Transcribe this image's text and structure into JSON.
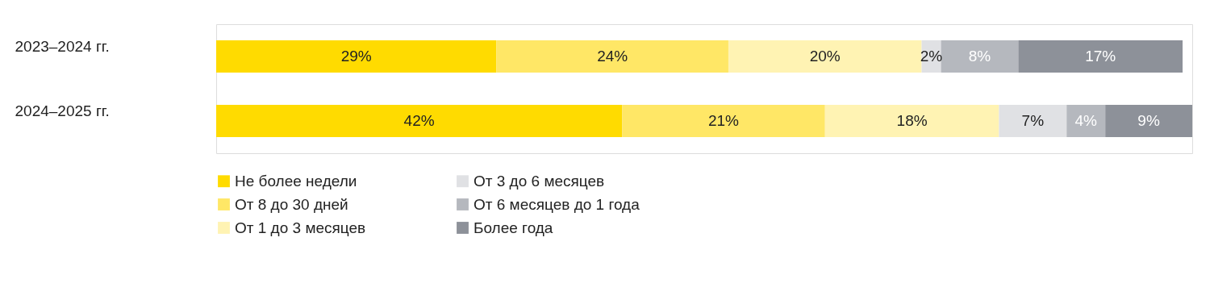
{
  "chart_data": {
    "type": "bar",
    "orientation": "horizontal",
    "stacked": true,
    "legend": "bottom",
    "categories": [
      "2023–2024 гг.",
      "2024–2025 гг."
    ],
    "series": [
      {
        "name": "Не более недели",
        "color": "#ffdb00",
        "values": [
          29,
          42
        ],
        "value_labels": [
          "29%",
          "42%"
        ]
      },
      {
        "name": "От 8 до 30 дней",
        "color": "#ffe766",
        "values": [
          24,
          21
        ],
        "value_labels": [
          "24%",
          "21%"
        ]
      },
      {
        "name": "От 1 до 3 месяцев",
        "color": "#fff3b3",
        "values": [
          20,
          18
        ],
        "value_labels": [
          "20%",
          "18%"
        ]
      },
      {
        "name": "От 3 до 6 месяцев",
        "color": "#e0e1e4",
        "values": [
          2,
          7
        ],
        "value_labels": [
          "2%",
          "7%"
        ]
      },
      {
        "name": "От 6 месяцев до 1 года",
        "color": "#b5b8be",
        "values": [
          8,
          4
        ],
        "value_labels": [
          "8%",
          "4%"
        ]
      },
      {
        "name": "Более года",
        "color": "#8d9199",
        "values": [
          17,
          9
        ],
        "value_labels": [
          "17%",
          "9%"
        ]
      }
    ]
  }
}
